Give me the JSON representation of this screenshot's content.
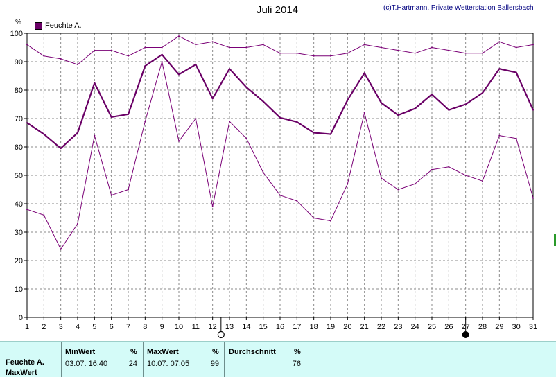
{
  "chart_data": {
    "type": "line",
    "title": "Juli 2014",
    "copyright": "(c)T.Hartmann, Private Wetterstation Ballersbach",
    "ylabel": "%",
    "ylim": [
      0,
      100
    ],
    "yticks": [
      0,
      10,
      20,
      30,
      40,
      50,
      60,
      70,
      80,
      90,
      100
    ],
    "x": [
      1,
      2,
      3,
      4,
      5,
      6,
      7,
      8,
      9,
      10,
      11,
      12,
      13,
      14,
      15,
      16,
      17,
      18,
      19,
      20,
      21,
      22,
      23,
      24,
      25,
      26,
      27,
      28,
      29,
      30,
      31
    ],
    "grid": true,
    "legend": "top-left",
    "series": [
      {
        "name": "Feuchte A.",
        "role": "mittel",
        "color": "#6a0066",
        "values": [
          68.5,
          64.5,
          59.5,
          65,
          82.5,
          70.5,
          71.5,
          88.5,
          92.5,
          85.5,
          89,
          77,
          87.5,
          81,
          76,
          70.3,
          68.8,
          65,
          64.5,
          76.5,
          86,
          75.5,
          71.2,
          73.5,
          78.5,
          73,
          75,
          79,
          87.5,
          86.2,
          73
        ]
      },
      {
        "role": "max",
        "color": "#7a0076",
        "values": [
          96,
          92,
          91,
          89,
          94,
          94,
          92,
          95,
          95,
          99,
          96,
          97,
          95,
          95,
          96,
          93,
          93,
          92,
          92,
          93,
          96,
          95,
          94,
          93,
          95,
          94,
          93,
          93,
          97,
          95,
          96
        ]
      },
      {
        "role": "min",
        "color": "#7a0076",
        "values": [
          38,
          36,
          24,
          33,
          64,
          43,
          45,
          69,
          90,
          62,
          70,
          39,
          69,
          63,
          51,
          43,
          41,
          35,
          34,
          47,
          72,
          49,
          45,
          47,
          52,
          53,
          50,
          48,
          64,
          63,
          42
        ]
      }
    ],
    "markers": {
      "open_circle_day": 12.5,
      "filled_circle_day": 27
    }
  },
  "stats": {
    "row_label": "Feuchte A.",
    "row_label2": "MaxWert",
    "min_header": "MinWert",
    "min_unit": "%",
    "min_time": "03.07.  16:40",
    "min_value": "24",
    "max_header": "MaxWert",
    "max_unit": "%",
    "max_time": "10.07.  07:05",
    "max_value": "99",
    "avg_header": "Durchschnitt",
    "avg_unit": "%",
    "avg_value": "76"
  }
}
